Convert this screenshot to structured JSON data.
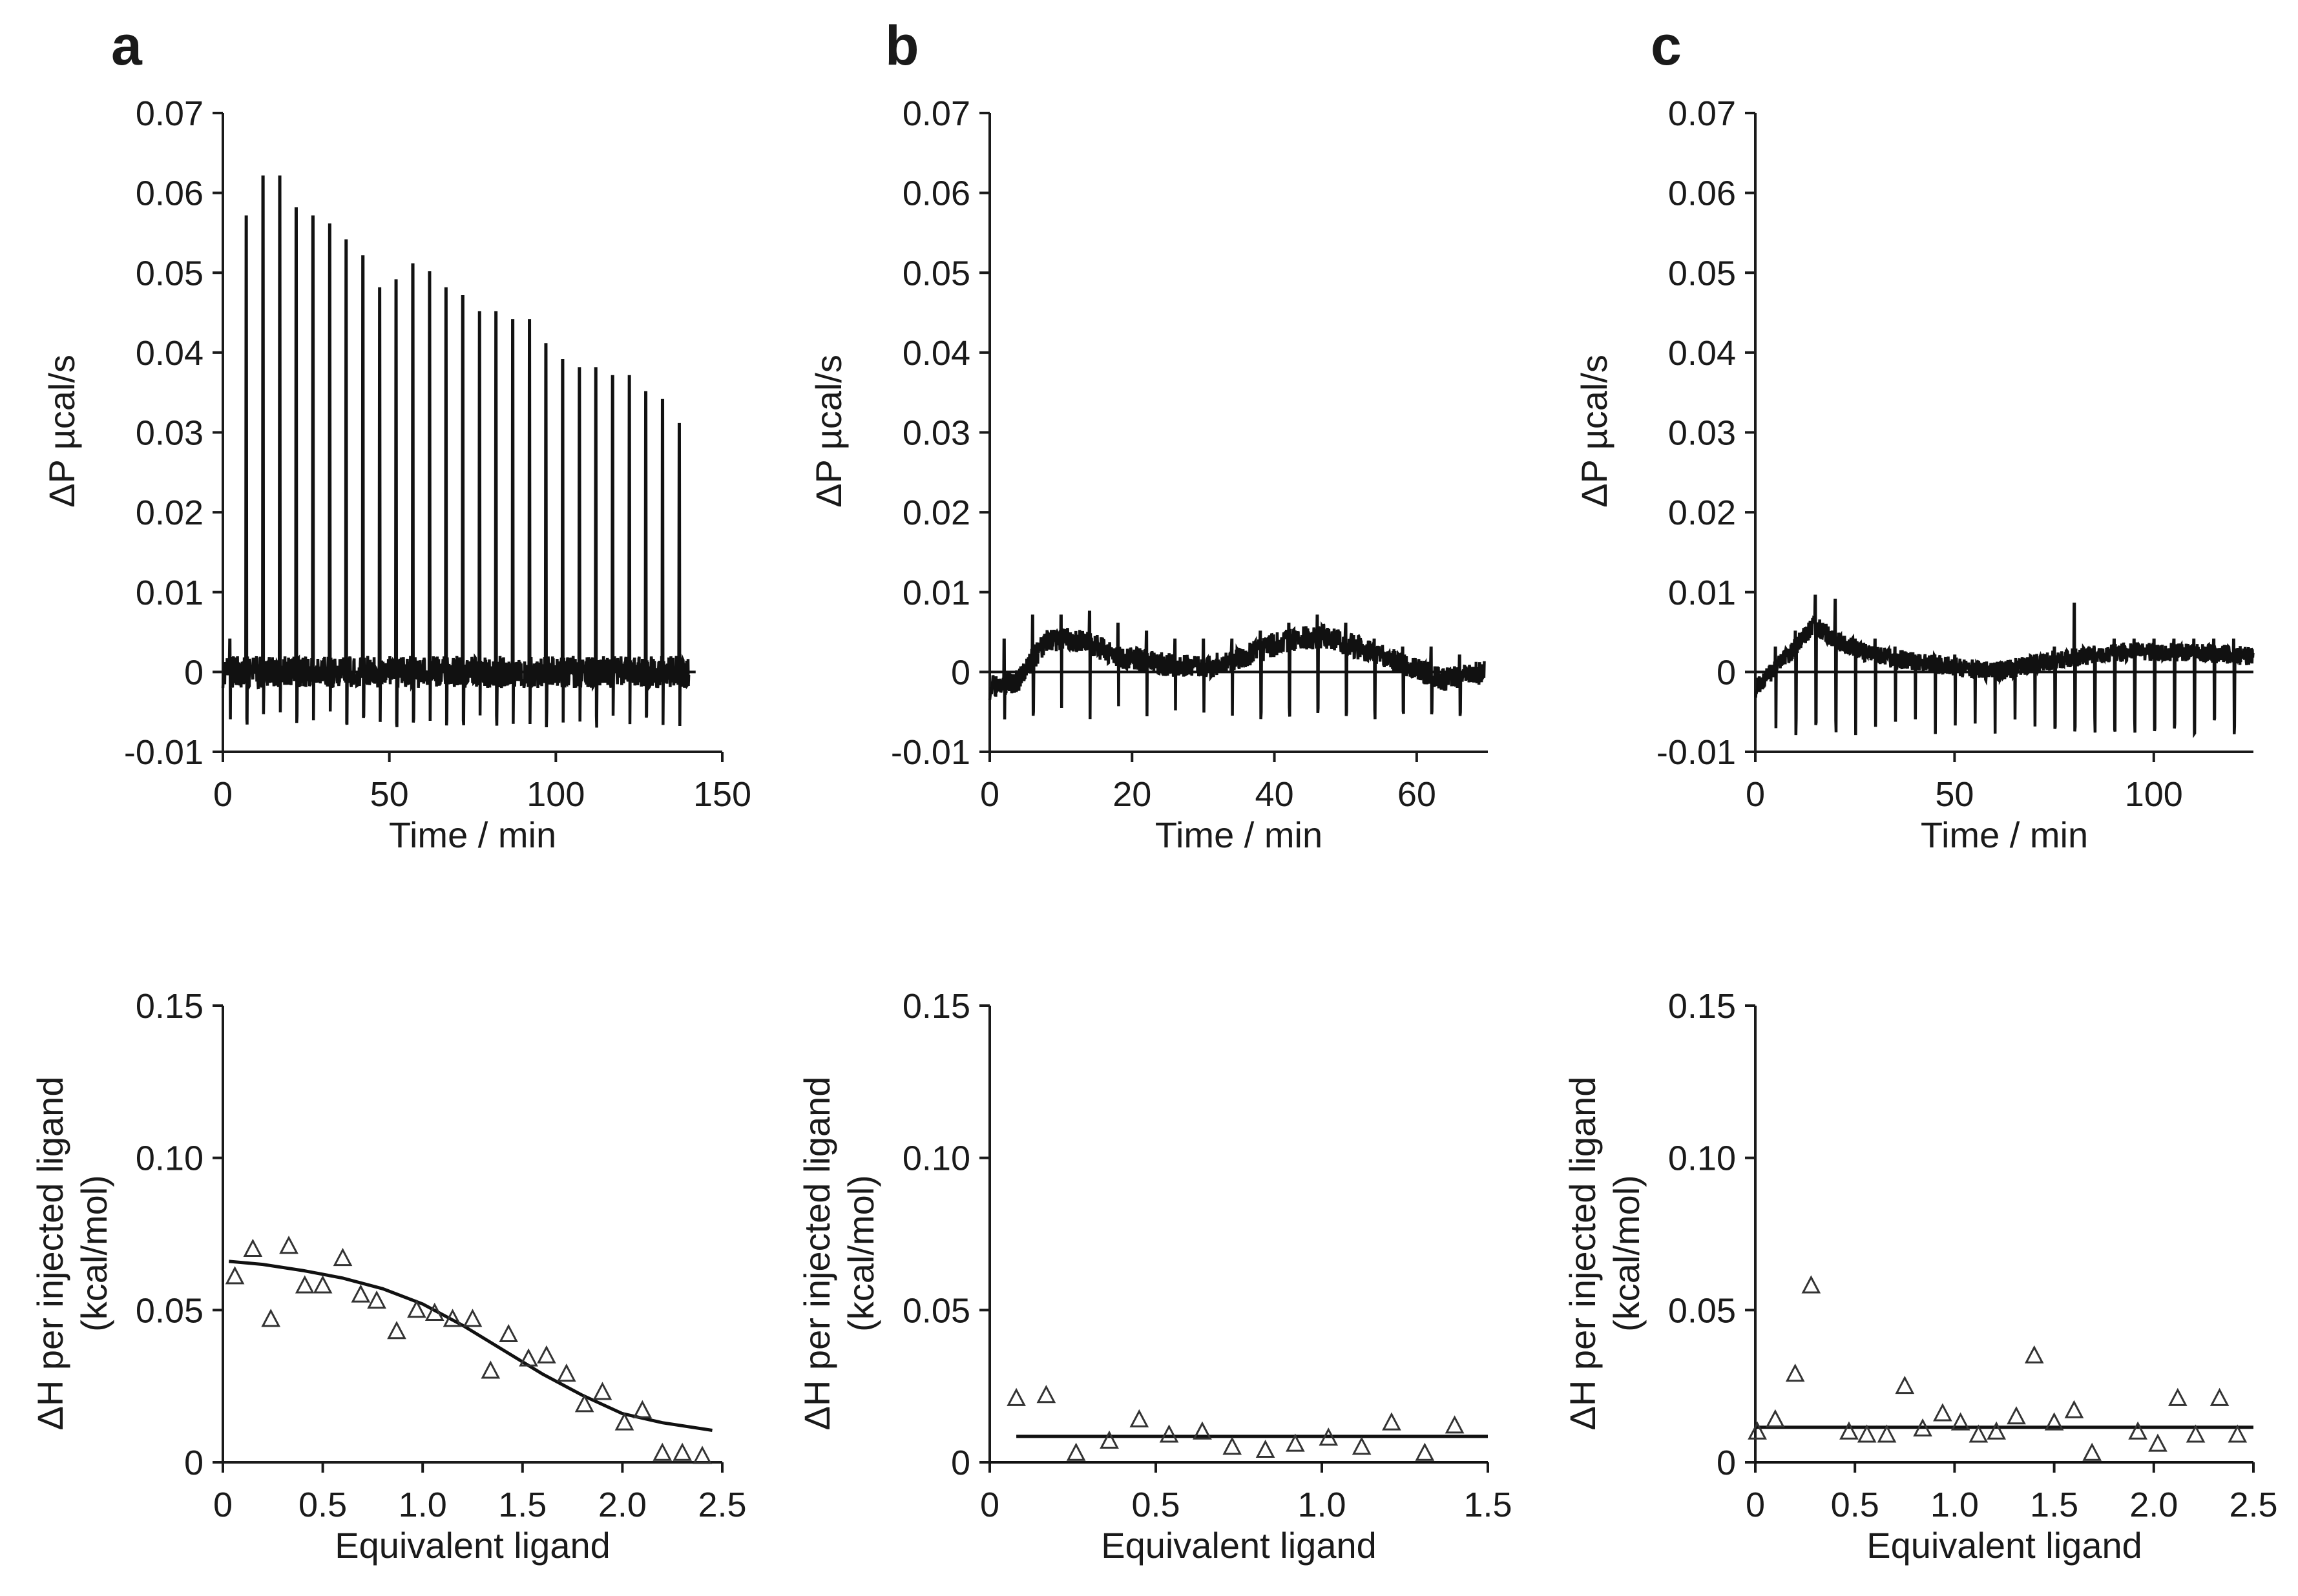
{
  "colors": {
    "line": "#111111",
    "marker_stroke": "#333333",
    "text": "#1a1a1a",
    "background": "#ffffff"
  },
  "chart_data": [
    {
      "panel": "a",
      "type": "line",
      "row": "top",
      "xlabel": "Time / min",
      "ylabel": "ΔP µcal/s",
      "xlim": [
        0,
        150
      ],
      "ylim": [
        -0.01,
        0.07
      ],
      "xticks": [
        0,
        50,
        100,
        150
      ],
      "xtick_labels": [
        "0",
        "50",
        "100",
        "150"
      ],
      "yticks": [
        -0.01,
        0,
        0.01,
        0.02,
        0.03,
        0.04,
        0.05,
        0.06,
        0.07
      ],
      "ytick_labels": [
        "-0.01",
        "0",
        "0.01",
        "0.02",
        "0.03",
        "0.04",
        "0.05",
        "0.06",
        "0.07"
      ],
      "baseline": 0,
      "trace_end": 140,
      "noise_amplitude": 0.002,
      "neg_spike_depth": -0.007,
      "injection_times": [
        2,
        7,
        12,
        17,
        22,
        27,
        32,
        37,
        42,
        47,
        52,
        57,
        62,
        67,
        72,
        77,
        82,
        87,
        92,
        97,
        102,
        107,
        112,
        117,
        122,
        127,
        132,
        137
      ],
      "injection_peaks": [
        0.004,
        0.057,
        0.062,
        0.062,
        0.058,
        0.057,
        0.056,
        0.054,
        0.052,
        0.048,
        0.049,
        0.051,
        0.05,
        0.048,
        0.047,
        0.045,
        0.045,
        0.044,
        0.044,
        0.041,
        0.039,
        0.038,
        0.038,
        0.037,
        0.037,
        0.035,
        0.034,
        0.031
      ]
    },
    {
      "panel": "b",
      "type": "line",
      "row": "top",
      "xlabel": "Time / min",
      "ylabel": "ΔP µcal/s",
      "xlim": [
        0,
        70
      ],
      "ylim": [
        -0.01,
        0.07
      ],
      "xticks": [
        0,
        20,
        40,
        60
      ],
      "xtick_labels": [
        "0",
        "20",
        "40",
        "60"
      ],
      "yticks": [
        -0.01,
        0,
        0.01,
        0.02,
        0.03,
        0.04,
        0.05,
        0.06,
        0.07
      ],
      "ytick_labels": [
        "-0.01",
        "0",
        "0.01",
        "0.02",
        "0.03",
        "0.04",
        "0.05",
        "0.06",
        "0.07"
      ],
      "baseline": 0,
      "trace_end": 69.5,
      "noise_amplitude": 0.0015,
      "neg_spike_depth": -0.006,
      "drift": [
        [
          0,
          -0.002
        ],
        [
          4,
          -0.001
        ],
        [
          8,
          0.004
        ],
        [
          13,
          0.004
        ],
        [
          18,
          0.002
        ],
        [
          24,
          0.001
        ],
        [
          30,
          0.0005
        ],
        [
          36,
          0.002
        ],
        [
          42,
          0.004
        ],
        [
          47,
          0.0045
        ],
        [
          52,
          0.003
        ],
        [
          58,
          0.001
        ],
        [
          64,
          -0.001
        ],
        [
          69.5,
          0.0
        ]
      ],
      "injection_times": [
        2,
        6,
        10,
        14,
        18,
        22,
        26,
        30,
        34,
        38,
        42,
        46,
        50,
        54,
        58,
        62,
        66
      ],
      "injection_peaks": [
        0.004,
        0.007,
        0.007,
        0.0075,
        0.006,
        0.005,
        0.004,
        0.004,
        0.004,
        0.005,
        0.006,
        0.007,
        0.006,
        0.004,
        0.003,
        0.003,
        0.002
      ]
    },
    {
      "panel": "c",
      "type": "line",
      "row": "top",
      "xlabel": "Time / min",
      "ylabel": "ΔP µcal/s",
      "xlim": [
        0,
        125
      ],
      "ylim": [
        -0.01,
        0.07
      ],
      "xticks": [
        0,
        50,
        100
      ],
      "xtick_labels": [
        "0",
        "50",
        "100"
      ],
      "yticks": [
        -0.01,
        0,
        0.01,
        0.02,
        0.03,
        0.04,
        0.05,
        0.06,
        0.07
      ],
      "ytick_labels": [
        "-0.01",
        "0",
        "0.01",
        "0.02",
        "0.03",
        "0.04",
        "0.05",
        "0.06",
        "0.07"
      ],
      "baseline": 0,
      "trace_end": 125,
      "noise_amplitude": 0.0012,
      "neg_spike_depth": -0.008,
      "drift": [
        [
          0,
          -0.002
        ],
        [
          8,
          0.002
        ],
        [
          15,
          0.006
        ],
        [
          20,
          0.004
        ],
        [
          30,
          0.002
        ],
        [
          45,
          0.001
        ],
        [
          60,
          0.0
        ],
        [
          75,
          0.0015
        ],
        [
          90,
          0.0025
        ],
        [
          105,
          0.0025
        ],
        [
          125,
          0.002
        ]
      ],
      "injection_times": [
        5,
        10,
        15,
        20,
        25,
        30,
        35,
        40,
        45,
        50,
        55,
        60,
        65,
        70,
        75,
        80,
        85,
        90,
        95,
        100,
        105,
        110,
        115,
        120
      ],
      "injection_peaks": [
        0.003,
        0.005,
        0.0095,
        0.009,
        0.004,
        0.004,
        0.003,
        0.002,
        0.002,
        0.002,
        0.001,
        0.001,
        0.001,
        0.002,
        0.003,
        0.0085,
        0.003,
        0.004,
        0.004,
        0.004,
        0.004,
        0.004,
        0.004,
        0.004
      ]
    },
    {
      "panel": "a",
      "type": "scatter",
      "row": "bottom",
      "xlabel": "Equivalent ligand",
      "ylabel_lines": [
        "ΔH per injected ligand",
        "(kcal/mol)"
      ],
      "xlim": [
        0,
        2.5
      ],
      "ylim": [
        0,
        0.15
      ],
      "xticks": [
        0,
        0.5,
        1.0,
        1.5,
        2.0,
        2.5
      ],
      "xtick_labels": [
        "0",
        "0.5",
        "1.0",
        "1.5",
        "2.0",
        "2.5"
      ],
      "yticks": [
        0,
        0.05,
        0.1,
        0.15
      ],
      "ytick_labels": [
        "0",
        "0.05",
        "0.10",
        "0.15"
      ],
      "baseline": null,
      "x": [
        0.06,
        0.15,
        0.24,
        0.33,
        0.41,
        0.5,
        0.6,
        0.69,
        0.77,
        0.87,
        0.97,
        1.06,
        1.15,
        1.25,
        1.34,
        1.43,
        1.53,
        1.62,
        1.72,
        1.81,
        1.9,
        2.01,
        2.1,
        2.2,
        2.3,
        2.4
      ],
      "y": [
        0.061,
        0.07,
        0.047,
        0.071,
        0.058,
        0.058,
        0.067,
        0.055,
        0.053,
        0.043,
        0.05,
        0.049,
        0.047,
        0.047,
        0.03,
        0.042,
        0.034,
        0.035,
        0.029,
        0.019,
        0.023,
        0.013,
        0.017,
        0.003,
        0.003,
        0.002
      ],
      "fit": {
        "x": [
          0.03,
          0.2,
          0.4,
          0.6,
          0.8,
          1.0,
          1.2,
          1.4,
          1.6,
          1.8,
          2.0,
          2.2,
          2.45
        ],
        "y": [
          0.066,
          0.065,
          0.063,
          0.0605,
          0.057,
          0.052,
          0.045,
          0.037,
          0.029,
          0.022,
          0.016,
          0.013,
          0.0105
        ]
      }
    },
    {
      "panel": "b",
      "type": "scatter",
      "row": "bottom",
      "xlabel": "Equivalent ligand",
      "ylabel_lines": [
        "ΔH per injected ligand",
        "(kcal/mol)"
      ],
      "xlim": [
        0,
        1.5
      ],
      "ylim": [
        0,
        0.15
      ],
      "xticks": [
        0,
        0.5,
        1.0,
        1.5
      ],
      "xtick_labels": [
        "0",
        "0.5",
        "1.0",
        "1.5"
      ],
      "yticks": [
        0,
        0.05,
        0.1,
        0.15
      ],
      "ytick_labels": [
        "0",
        "0.05",
        "0.10",
        "0.15"
      ],
      "baseline": 0,
      "x": [
        0.08,
        0.17,
        0.26,
        0.36,
        0.45,
        0.54,
        0.64,
        0.73,
        0.83,
        0.92,
        1.02,
        1.12,
        1.21,
        1.31,
        1.4
      ],
      "y": [
        0.021,
        0.022,
        0.003,
        0.007,
        0.014,
        0.009,
        0.01,
        0.005,
        0.004,
        0.006,
        0.008,
        0.005,
        0.013,
        0.003,
        0.012
      ],
      "fit": {
        "x": [
          0.08,
          1.5
        ],
        "y": [
          0.0085,
          0.0085
        ]
      }
    },
    {
      "panel": "c",
      "type": "scatter",
      "row": "bottom",
      "xlabel": "Equivalent ligand",
      "ylabel_lines": [
        "ΔH per injected ligand",
        "(kcal/mol)"
      ],
      "xlim": [
        0,
        2.5
      ],
      "ylim": [
        0,
        0.15
      ],
      "xticks": [
        0,
        0.5,
        1.0,
        1.5,
        2.0,
        2.5
      ],
      "xtick_labels": [
        "0",
        "0.5",
        "1.0",
        "1.5",
        "2.0",
        "2.5"
      ],
      "yticks": [
        0,
        0.05,
        0.1,
        0.15
      ],
      "ytick_labels": [
        "0",
        "0.05",
        "0.10",
        "0.15"
      ],
      "baseline": 0,
      "x": [
        0.01,
        0.1,
        0.2,
        0.28,
        0.47,
        0.56,
        0.66,
        0.75,
        0.84,
        0.94,
        1.03,
        1.12,
        1.21,
        1.31,
        1.4,
        1.5,
        1.6,
        1.69,
        1.92,
        2.02,
        2.12,
        2.21,
        2.33,
        2.42
      ],
      "y": [
        0.01,
        0.014,
        0.029,
        0.058,
        0.01,
        0.009,
        0.009,
        0.025,
        0.011,
        0.016,
        0.013,
        0.009,
        0.01,
        0.015,
        0.035,
        0.013,
        0.017,
        0.003,
        0.01,
        0.006,
        0.021,
        0.009,
        0.021,
        0.009
      ],
      "fit": {
        "x": [
          0.0,
          2.5
        ],
        "y": [
          0.0115,
          0.0115
        ]
      }
    }
  ]
}
